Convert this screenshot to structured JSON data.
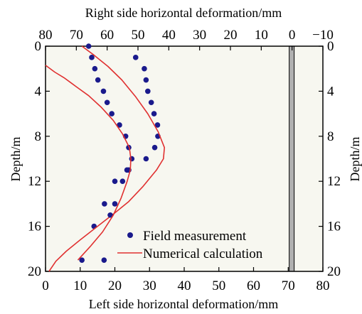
{
  "colors": {
    "plot_background": "#f7f7f0",
    "measurement": "#1a1a8c",
    "calculation": "#e03030",
    "wall": "#b0b0b0"
  },
  "chart_data": {
    "type": "scatter",
    "title": "",
    "x_bottom": {
      "label": "Left side horizontal deformation/mm",
      "range": [
        0,
        80
      ],
      "ticks": [
        0,
        10,
        20,
        30,
        40,
        50,
        60,
        70,
        80
      ],
      "tick_labels": [
        "0",
        "10",
        "20",
        "30",
        "40",
        "50",
        "60",
        "70",
        "80"
      ]
    },
    "x_top": {
      "label": "Right side horizontal deformation/mm",
      "range": [
        80,
        -10
      ],
      "ticks": [
        80,
        70,
        60,
        50,
        40,
        30,
        20,
        10,
        0,
        -10
      ],
      "tick_labels": [
        "80",
        "70",
        "60",
        "50",
        "40",
        "30",
        "20",
        "10",
        "0",
        "−10"
      ]
    },
    "y": {
      "label": "Depth/m",
      "range": [
        0,
        20
      ],
      "inverted": true,
      "ticks": [
        0,
        4,
        8,
        12,
        16,
        20
      ],
      "tick_labels": [
        "0",
        "4",
        "8",
        "12",
        "16",
        "20"
      ]
    },
    "legend": {
      "position": "bottom-center",
      "entries": [
        "Field measurement",
        "Numerical calculation"
      ]
    },
    "series": [
      {
        "name": "Field measurement",
        "kind": "scatter",
        "side": "left",
        "points": [
          [
            26,
            1
          ],
          [
            28.5,
            2
          ],
          [
            29,
            3
          ],
          [
            29.5,
            4
          ],
          [
            30.5,
            5
          ],
          [
            31.3,
            6
          ],
          [
            32.3,
            7
          ],
          [
            32.4,
            8
          ],
          [
            31.5,
            9
          ],
          [
            29,
            10
          ],
          [
            23.5,
            11
          ],
          [
            20,
            12
          ],
          [
            17,
            14
          ],
          [
            14,
            16
          ],
          [
            10.5,
            19
          ]
        ]
      },
      {
        "name": "Numerical calculation",
        "kind": "line",
        "side": "left",
        "points": [
          [
            10.5,
            0
          ],
          [
            14,
            0.8
          ],
          [
            18,
            1.8
          ],
          [
            22,
            3
          ],
          [
            26,
            4.5
          ],
          [
            29.5,
            6
          ],
          [
            32.5,
            7.6
          ],
          [
            34.3,
            9
          ],
          [
            34,
            10
          ],
          [
            32,
            11
          ],
          [
            28,
            12.5
          ],
          [
            24,
            13.8
          ],
          [
            20,
            14.8
          ],
          [
            15,
            16
          ],
          [
            10,
            17.2
          ],
          [
            6,
            18.2
          ],
          [
            3,
            19.1
          ],
          [
            1,
            20
          ]
        ]
      },
      {
        "name": "Field measurement",
        "kind": "scatter",
        "side": "right",
        "points": [
          [
            66,
            0
          ],
          [
            65,
            1
          ],
          [
            64,
            2
          ],
          [
            63,
            3
          ],
          [
            61.2,
            4
          ],
          [
            60,
            5
          ],
          [
            58.5,
            6
          ],
          [
            56,
            7
          ],
          [
            54,
            8
          ],
          [
            53,
            9
          ],
          [
            52,
            10
          ],
          [
            53,
            11
          ],
          [
            55,
            12
          ],
          [
            57.5,
            14
          ],
          [
            59,
            15
          ],
          [
            61,
            19
          ]
        ]
      },
      {
        "name": "Numerical calculation",
        "kind": "line",
        "side": "right",
        "points": [
          [
            80,
            1.7
          ],
          [
            77,
            2.3
          ],
          [
            74,
            2.8
          ],
          [
            71.5,
            3.3
          ],
          [
            70,
            3.6
          ],
          [
            66,
            4.4
          ],
          [
            62,
            5.4
          ],
          [
            58,
            6.6
          ],
          [
            55,
            7.8
          ],
          [
            52.8,
            9
          ],
          [
            52.3,
            10
          ],
          [
            52.5,
            11
          ],
          [
            53.5,
            12
          ],
          [
            55.5,
            13.5
          ],
          [
            58,
            15
          ],
          [
            61.5,
            16.5
          ],
          [
            65.5,
            17.8
          ],
          [
            69.5,
            19
          ]
        ]
      }
    ]
  }
}
